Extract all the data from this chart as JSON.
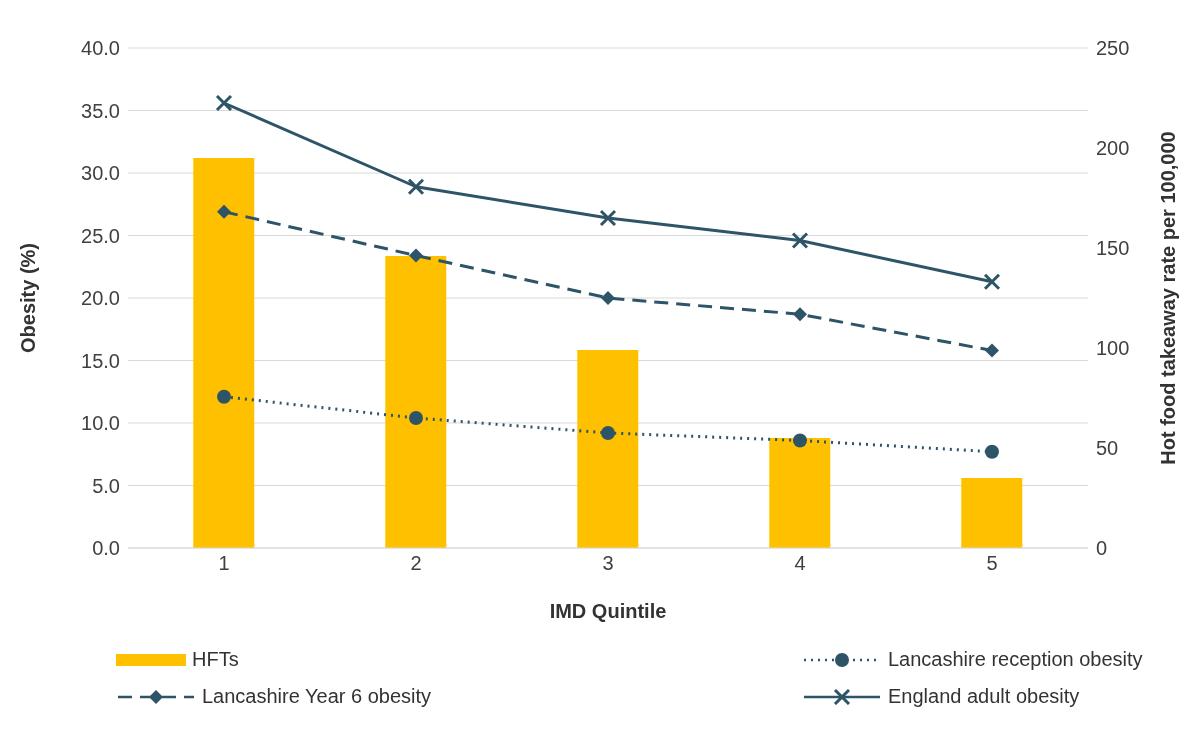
{
  "chart_data": {
    "type": "bar",
    "xlabel": "IMD Quintile",
    "ylabel": "Obesity (%)",
    "y2label": "Hot food takeaway rate per 100,000",
    "categories": [
      "1",
      "2",
      "3",
      "4",
      "5"
    ],
    "series": [
      {
        "name": "HFTs",
        "axis": "y2",
        "color": "#ffc000",
        "values": [
          195,
          146,
          99,
          55,
          35
        ]
      },
      {
        "name": "Lancashire reception obesity",
        "type": "line",
        "color": "#2e5468",
        "marker": "circle",
        "line_style": "dotted",
        "values": [
          12.1,
          10.4,
          9.2,
          8.6,
          7.7
        ]
      },
      {
        "name": "Lancashire Year 6 obesity",
        "type": "line",
        "color": "#2e5468",
        "marker": "diamond",
        "line_style": "dashed",
        "values": [
          26.9,
          23.4,
          20.0,
          18.7,
          15.8
        ]
      },
      {
        "name": "England adult obesity",
        "type": "line",
        "color": "#2e5468",
        "marker": "cross",
        "line_style": "solid",
        "values": [
          35.6,
          28.9,
          26.4,
          24.6,
          21.3
        ]
      }
    ],
    "ylim": [
      0,
      40
    ],
    "yticks": [
      {
        "value": 0,
        "label": "0.0"
      },
      {
        "value": 5,
        "label": "5.0"
      },
      {
        "value": 10,
        "label": "10.0"
      },
      {
        "value": 15,
        "label": "15.0"
      },
      {
        "value": 20,
        "label": "20.0"
      },
      {
        "value": 25,
        "label": "25.0"
      },
      {
        "value": 30,
        "label": "30.0"
      },
      {
        "value": 35,
        "label": "35.0"
      },
      {
        "value": 40,
        "label": "40.0"
      }
    ],
    "y2lim": [
      0,
      250
    ],
    "y2ticks": [
      0,
      50,
      100,
      150,
      200,
      250
    ],
    "grid": "y",
    "legend": "bottom"
  }
}
